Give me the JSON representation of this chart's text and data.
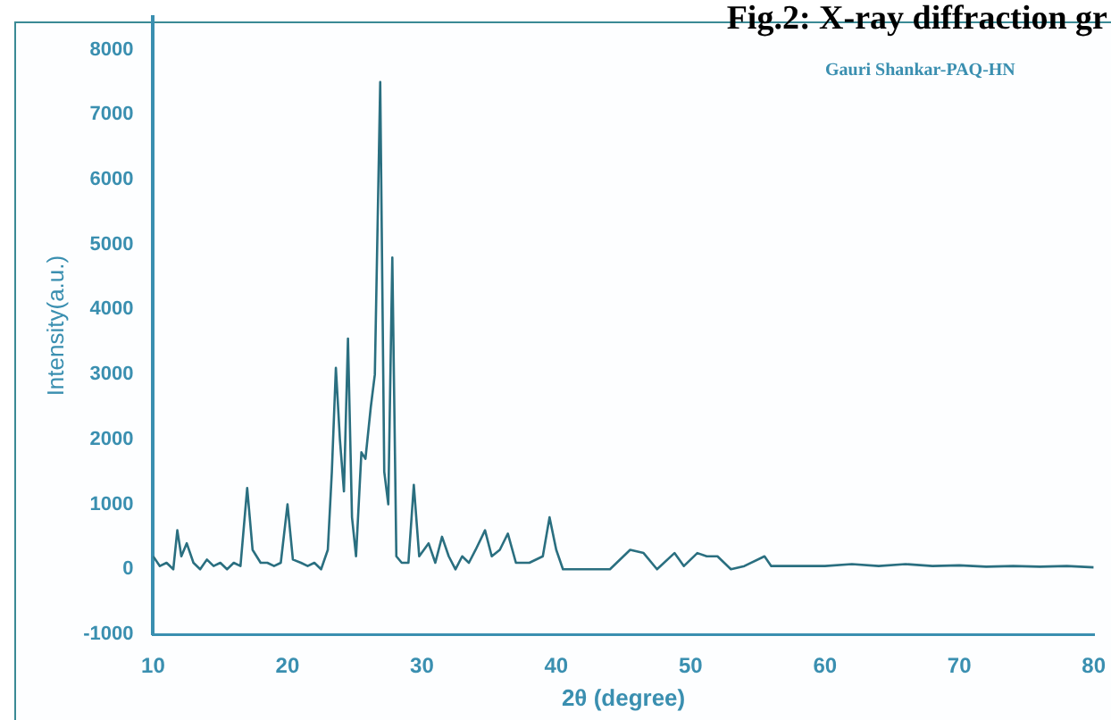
{
  "chart_data": {
    "type": "line",
    "title": "Fig.2: X-ray diffraction gr",
    "xlabel": "2θ (degree)",
    "ylabel": "Intensity(a.u.)",
    "annotations": [
      "Gauri Shankar-PAQ-HN"
    ],
    "legend": false,
    "grid": false,
    "marker": "none",
    "line_style": "solid",
    "xlim": [
      10,
      80
    ],
    "ylim": [
      -1000,
      8500
    ],
    "xticks": [
      10,
      20,
      30,
      40,
      50,
      60,
      70,
      80
    ],
    "yticks": [
      -1000,
      0,
      1000,
      2000,
      3000,
      4000,
      5000,
      6000,
      7000,
      8000
    ],
    "series": [
      {
        "color": "#2a6f80",
        "x": [
          10,
          10.5,
          11,
          11.5,
          11.8,
          12.1,
          12.5,
          13,
          13.5,
          14,
          14.5,
          15,
          15.5,
          16,
          16.5,
          17,
          17.4,
          18,
          18.5,
          19,
          19.5,
          20,
          20.4,
          21,
          21.5,
          22,
          22.5,
          23,
          23.3,
          23.6,
          23.9,
          24.2,
          24.5,
          24.8,
          25.1,
          25.5,
          25.8,
          26.2,
          26.5,
          26.9,
          27.2,
          27.5,
          27.8,
          28.1,
          28.5,
          29,
          29.4,
          29.8,
          30.5,
          31,
          31.5,
          32,
          32.5,
          33,
          33.5,
          34,
          34.7,
          35.2,
          35.8,
          36.4,
          37,
          38,
          39,
          39.5,
          40,
          40.5,
          42,
          44,
          45.5,
          46.5,
          47.5,
          48.8,
          49.5,
          50.5,
          51.2,
          52,
          53,
          54,
          55.5,
          56,
          58,
          60,
          62,
          64,
          66,
          68,
          70,
          72,
          74,
          76,
          78,
          80
        ],
        "values": [
          200,
          50,
          100,
          0,
          600,
          200,
          400,
          100,
          0,
          150,
          50,
          100,
          0,
          100,
          50,
          1250,
          300,
          100,
          100,
          50,
          100,
          1000,
          150,
          100,
          50,
          100,
          0,
          300,
          1500,
          3100,
          2000,
          1200,
          3550,
          800,
          200,
          1800,
          1700,
          2500,
          3000,
          7500,
          1500,
          1000,
          4800,
          200,
          100,
          100,
          1300,
          200,
          400,
          100,
          500,
          200,
          0,
          200,
          100,
          300,
          600,
          200,
          300,
          550,
          100,
          100,
          200,
          800,
          300,
          0,
          0,
          0,
          300,
          250,
          0,
          250,
          50,
          250,
          200,
          200,
          0,
          50,
          200,
          50,
          50,
          50,
          80,
          50,
          80,
          50,
          60,
          40,
          50,
          40,
          50,
          30
        ]
      }
    ]
  }
}
